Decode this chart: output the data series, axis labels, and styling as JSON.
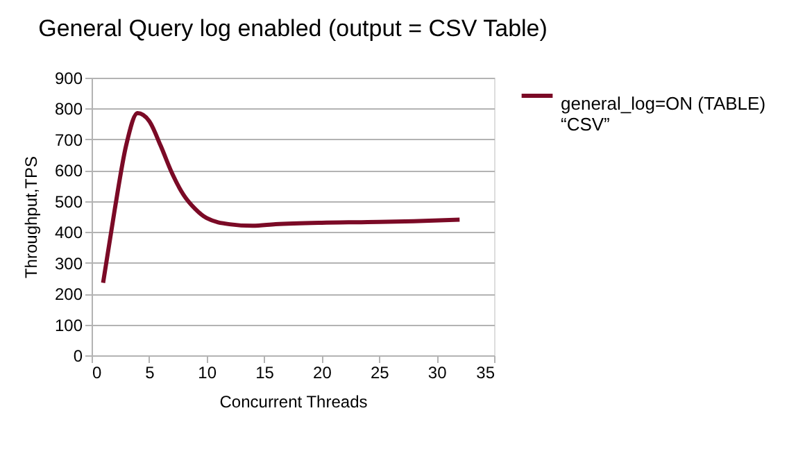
{
  "chart_data": {
    "type": "line",
    "title": "General Query log enabled (output = CSV Table)",
    "xlabel": "Concurrent Threads",
    "ylabel": "Throughput,TPS",
    "x": [
      1,
      2,
      3,
      4,
      5,
      6,
      7,
      8,
      9,
      10,
      12,
      14,
      16,
      20,
      24,
      28,
      32
    ],
    "series": [
      {
        "name": "general_log=ON (TABLE) “CSV”",
        "color": "#7b0a26",
        "values": [
          235,
          470,
          680,
          785,
          760,
          680,
          590,
          520,
          475,
          445,
          425,
          420,
          425,
          430,
          432,
          435,
          440
        ]
      }
    ],
    "xlim": [
      0,
      35
    ],
    "xticks": [
      0,
      5,
      10,
      15,
      20,
      25,
      30,
      35
    ],
    "ylim": [
      0,
      900
    ],
    "yticks": [
      0,
      100,
      200,
      300,
      400,
      500,
      600,
      700,
      800,
      900
    ],
    "grid": "y",
    "legend": "right",
    "marker": "none",
    "line_style": "solid"
  }
}
